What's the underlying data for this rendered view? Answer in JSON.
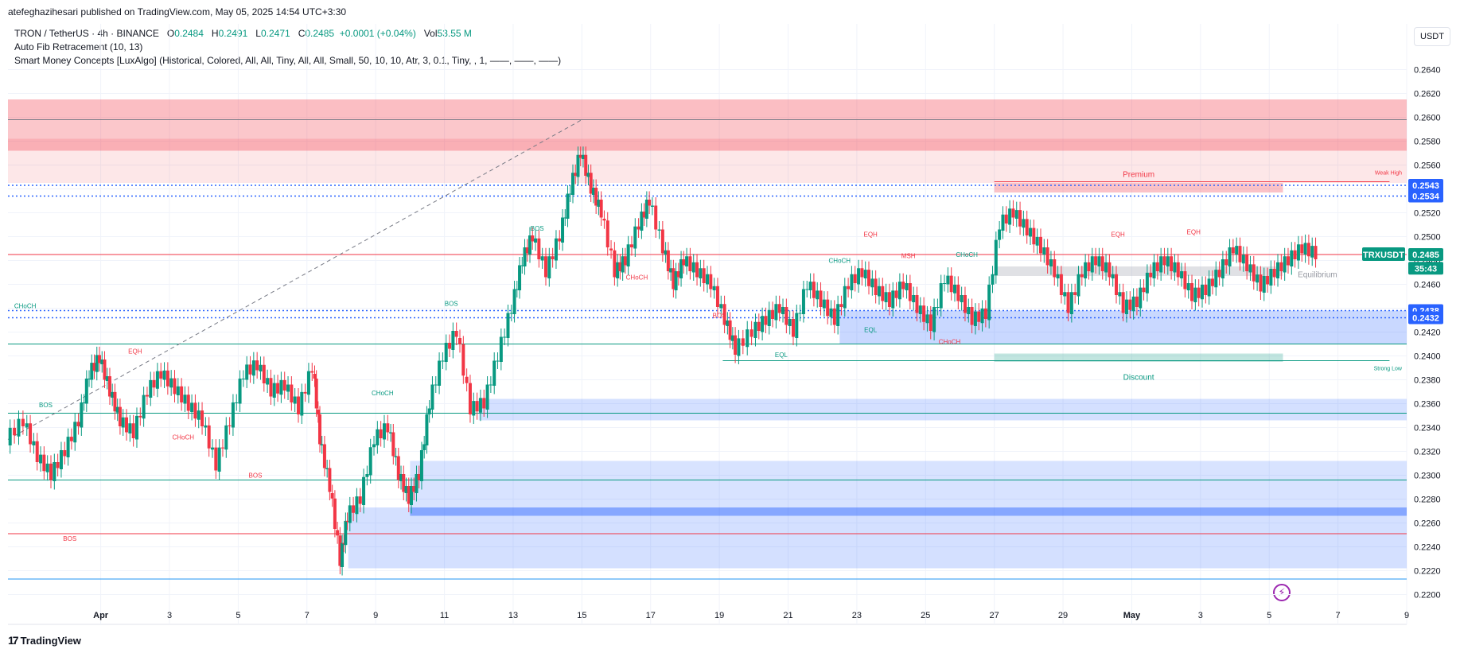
{
  "header": {
    "published": "atefeghazihesari published on TradingView.com, May 05, 2025 14:54 UTC+3:30"
  },
  "legend": {
    "symbol": "TRON / TetherUS · 4h · BINANCE",
    "o_label": "O",
    "o_val": "0.2484",
    "h_label": "H",
    "h_val": "0.2491",
    "l_label": "L",
    "l_val": "0.2471",
    "c_label": "C",
    "c_val": "0.2485",
    "change": "+0.0001 (+0.04%)",
    "vol_label": "Vol",
    "vol_val": "53.55 M",
    "indicator1": "Auto Fib Retracement (10, 13)",
    "indicator2": "Smart Money Concepts [LuxAlgo] (Historical, Colored, All, All, Tiny, All, All, Small, 50, 10, 10, Atr, 3, 0.1, Tiny, , 1, ——, ——, ——)"
  },
  "currency": "USDT",
  "footer": {
    "brand": "TradingView",
    "logo": "17"
  },
  "chart_data": {
    "type": "line",
    "title": "TRON / TetherUS · 4h · BINANCE",
    "ylim": [
      0.2195,
      0.2655
    ],
    "y_ticks": [
      "0.2640",
      "0.2620",
      "0.2600",
      "0.2580",
      "0.2560",
      "0.2540",
      "0.2520",
      "0.2500",
      "0.2480",
      "0.2460",
      "0.2440",
      "0.2420",
      "0.2400",
      "0.2380",
      "0.2360",
      "0.2340",
      "0.2320",
      "0.2300",
      "0.2280",
      "0.2260",
      "0.2240",
      "0.2220",
      "0.2200"
    ],
    "x_ticks": [
      "Apr",
      "3",
      "5",
      "7",
      "9",
      "11",
      "13",
      "15",
      "17",
      "19",
      "21",
      "23",
      "25",
      "27",
      "29",
      "May",
      "3",
      "5",
      "7",
      "9"
    ],
    "x_tick_days": [
      0,
      2,
      4,
      6,
      8,
      10,
      12,
      14,
      16,
      18,
      20,
      22,
      24,
      26,
      28,
      30,
      32,
      34,
      36,
      38
    ],
    "x_day_range": [
      -2.7,
      38
    ],
    "close_series_daily": [
      [
        -2.7,
        0.233
      ],
      [
        -2.2,
        0.2345
      ],
      [
        -1.8,
        0.2315
      ],
      [
        -1.4,
        0.23
      ],
      [
        -1.0,
        0.232
      ],
      [
        -0.6,
        0.2345
      ],
      [
        -0.3,
        0.2385
      ],
      [
        0.0,
        0.2398
      ],
      [
        0.3,
        0.237
      ],
      [
        0.6,
        0.2345
      ],
      [
        1.0,
        0.2335
      ],
      [
        1.4,
        0.237
      ],
      [
        1.8,
        0.2385
      ],
      [
        2.2,
        0.2372
      ],
      [
        2.6,
        0.2358
      ],
      [
        3.0,
        0.2345
      ],
      [
        3.4,
        0.2308
      ],
      [
        3.8,
        0.2345
      ],
      [
        4.2,
        0.2385
      ],
      [
        4.6,
        0.2392
      ],
      [
        5.0,
        0.237
      ],
      [
        5.4,
        0.2375
      ],
      [
        5.8,
        0.2355
      ],
      [
        6.2,
        0.239
      ],
      [
        6.4,
        0.233
      ],
      [
        6.7,
        0.229
      ],
      [
        7.0,
        0.2228
      ],
      [
        7.2,
        0.2265
      ],
      [
        7.6,
        0.228
      ],
      [
        8.0,
        0.233
      ],
      [
        8.4,
        0.234
      ],
      [
        8.7,
        0.23
      ],
      [
        9.0,
        0.228
      ],
      [
        9.3,
        0.23
      ],
      [
        9.6,
        0.236
      ],
      [
        10.0,
        0.24
      ],
      [
        10.4,
        0.242
      ],
      [
        10.8,
        0.2355
      ],
      [
        11.2,
        0.236
      ],
      [
        11.6,
        0.24
      ],
      [
        12.0,
        0.244
      ],
      [
        12.3,
        0.248
      ],
      [
        12.6,
        0.25
      ],
      [
        13.0,
        0.247
      ],
      [
        13.4,
        0.25
      ],
      [
        13.7,
        0.254
      ],
      [
        14.0,
        0.257
      ],
      [
        14.3,
        0.254
      ],
      [
        14.6,
        0.252
      ],
      [
        15.0,
        0.247
      ],
      [
        15.3,
        0.248
      ],
      [
        15.7,
        0.251
      ],
      [
        16.0,
        0.253
      ],
      [
        16.4,
        0.249
      ],
      [
        16.7,
        0.246
      ],
      [
        17.0,
        0.248
      ],
      [
        17.4,
        0.247
      ],
      [
        17.8,
        0.246
      ],
      [
        18.2,
        0.243
      ],
      [
        18.5,
        0.2405
      ],
      [
        19.0,
        0.242
      ],
      [
        19.4,
        0.243
      ],
      [
        19.8,
        0.244
      ],
      [
        20.2,
        0.242
      ],
      [
        20.6,
        0.246
      ],
      [
        21.0,
        0.2445
      ],
      [
        21.4,
        0.243
      ],
      [
        21.8,
        0.246
      ],
      [
        22.2,
        0.247
      ],
      [
        22.6,
        0.2455
      ],
      [
        23.0,
        0.2445
      ],
      [
        23.4,
        0.246
      ],
      [
        23.8,
        0.244
      ],
      [
        24.2,
        0.2425
      ],
      [
        24.6,
        0.2465
      ],
      [
        25.0,
        0.245
      ],
      [
        25.4,
        0.243
      ],
      [
        25.8,
        0.2435
      ],
      [
        26.2,
        0.251
      ],
      [
        26.6,
        0.252
      ],
      [
        27.0,
        0.2505
      ],
      [
        27.4,
        0.249
      ],
      [
        27.8,
        0.247
      ],
      [
        28.2,
        0.244
      ],
      [
        28.6,
        0.247
      ],
      [
        29.0,
        0.248
      ],
      [
        29.4,
        0.247
      ],
      [
        29.8,
        0.244
      ],
      [
        30.2,
        0.2445
      ],
      [
        30.6,
        0.247
      ],
      [
        31.0,
        0.248
      ],
      [
        31.4,
        0.247
      ],
      [
        31.8,
        0.245
      ],
      [
        32.2,
        0.2455
      ],
      [
        32.6,
        0.247
      ],
      [
        33.0,
        0.249
      ],
      [
        33.4,
        0.2475
      ],
      [
        33.8,
        0.2458
      ],
      [
        34.2,
        0.247
      ],
      [
        34.6,
        0.248
      ],
      [
        35.0,
        0.249
      ],
      [
        35.4,
        0.2485
      ]
    ],
    "price_labels": [
      {
        "text": "0.2543",
        "price": 0.2543,
        "color": "#2962ff"
      },
      {
        "text": "0.2534",
        "price": 0.2534,
        "color": "#2962ff"
      },
      {
        "text": "0.2485",
        "price": 0.2485,
        "color": "#089981"
      },
      {
        "text": "35:43",
        "price": 0.24735,
        "color": "#089981"
      },
      {
        "text": "0.2438",
        "price": 0.2438,
        "color": "#2962ff"
      },
      {
        "text": "0.2432",
        "price": 0.2432,
        "color": "#2962ff"
      }
    ],
    "symbol_tag": "TRXUSDT",
    "annotations": {
      "premium": "Premium",
      "equilibrium": "Equilibrium",
      "discount": "Discount",
      "weak_high": "Weak High",
      "strong_low": "Strong Low",
      "labels": [
        {
          "text": "CHoCH",
          "day": -2.2,
          "price": 0.244,
          "color": "#089981"
        },
        {
          "text": "EQH",
          "day": 1.0,
          "price": 0.2402,
          "color": "#f23645"
        },
        {
          "text": "BOS",
          "day": -1.6,
          "price": 0.2357,
          "color": "#089981"
        },
        {
          "text": "CHoCH",
          "day": 2.4,
          "price": 0.233,
          "color": "#f23645"
        },
        {
          "text": "BOS",
          "day": 4.5,
          "price": 0.2298,
          "color": "#f23645"
        },
        {
          "text": "BOS",
          "day": -0.9,
          "price": 0.2245,
          "color": "#f23645"
        },
        {
          "text": "CHoCH",
          "day": 8.2,
          "price": 0.2367,
          "color": "#089981"
        },
        {
          "text": "BOS",
          "day": 10.2,
          "price": 0.2442,
          "color": "#089981"
        },
        {
          "text": "BOS",
          "day": 12.7,
          "price": 0.2505,
          "color": "#089981"
        },
        {
          "text": "CHoCH",
          "day": 15.6,
          "price": 0.2464,
          "color": "#f23645"
        },
        {
          "text": "BOS",
          "day": 18.0,
          "price": 0.2432,
          "color": "#f23645"
        },
        {
          "text": "EQL",
          "day": 19.8,
          "price": 0.2399,
          "color": "#089981"
        },
        {
          "text": "CHoCH",
          "day": 21.5,
          "price": 0.2478,
          "color": "#089981"
        },
        {
          "text": "EQH",
          "day": 22.4,
          "price": 0.25,
          "color": "#f23645"
        },
        {
          "text": "EQL",
          "day": 22.4,
          "price": 0.242,
          "color": "#089981"
        },
        {
          "text": "MSH",
          "day": 23.5,
          "price": 0.2482,
          "color": "#f23645"
        },
        {
          "text": "CHoCH",
          "day": 25.2,
          "price": 0.2483,
          "color": "#089981"
        },
        {
          "text": "CHoCH",
          "day": 24.7,
          "price": 0.241,
          "color": "#f23645"
        },
        {
          "text": "EQH",
          "day": 29.6,
          "price": 0.25,
          "color": "#f23645"
        },
        {
          "text": "EQH",
          "day": 31.8,
          "price": 0.2502,
          "color": "#f23645"
        }
      ]
    },
    "levels": [
      {
        "price": 0.2598,
        "color": "#787b86"
      },
      {
        "price": 0.2485,
        "color": "#f23645"
      },
      {
        "price": 0.241,
        "color": "#089981"
      },
      {
        "price": 0.2352,
        "color": "#089981"
      },
      {
        "price": 0.2296,
        "color": "#089981"
      },
      {
        "price": 0.2251,
        "color": "#f23645"
      },
      {
        "price": 0.2213,
        "color": "#2196f3"
      }
    ]
  }
}
